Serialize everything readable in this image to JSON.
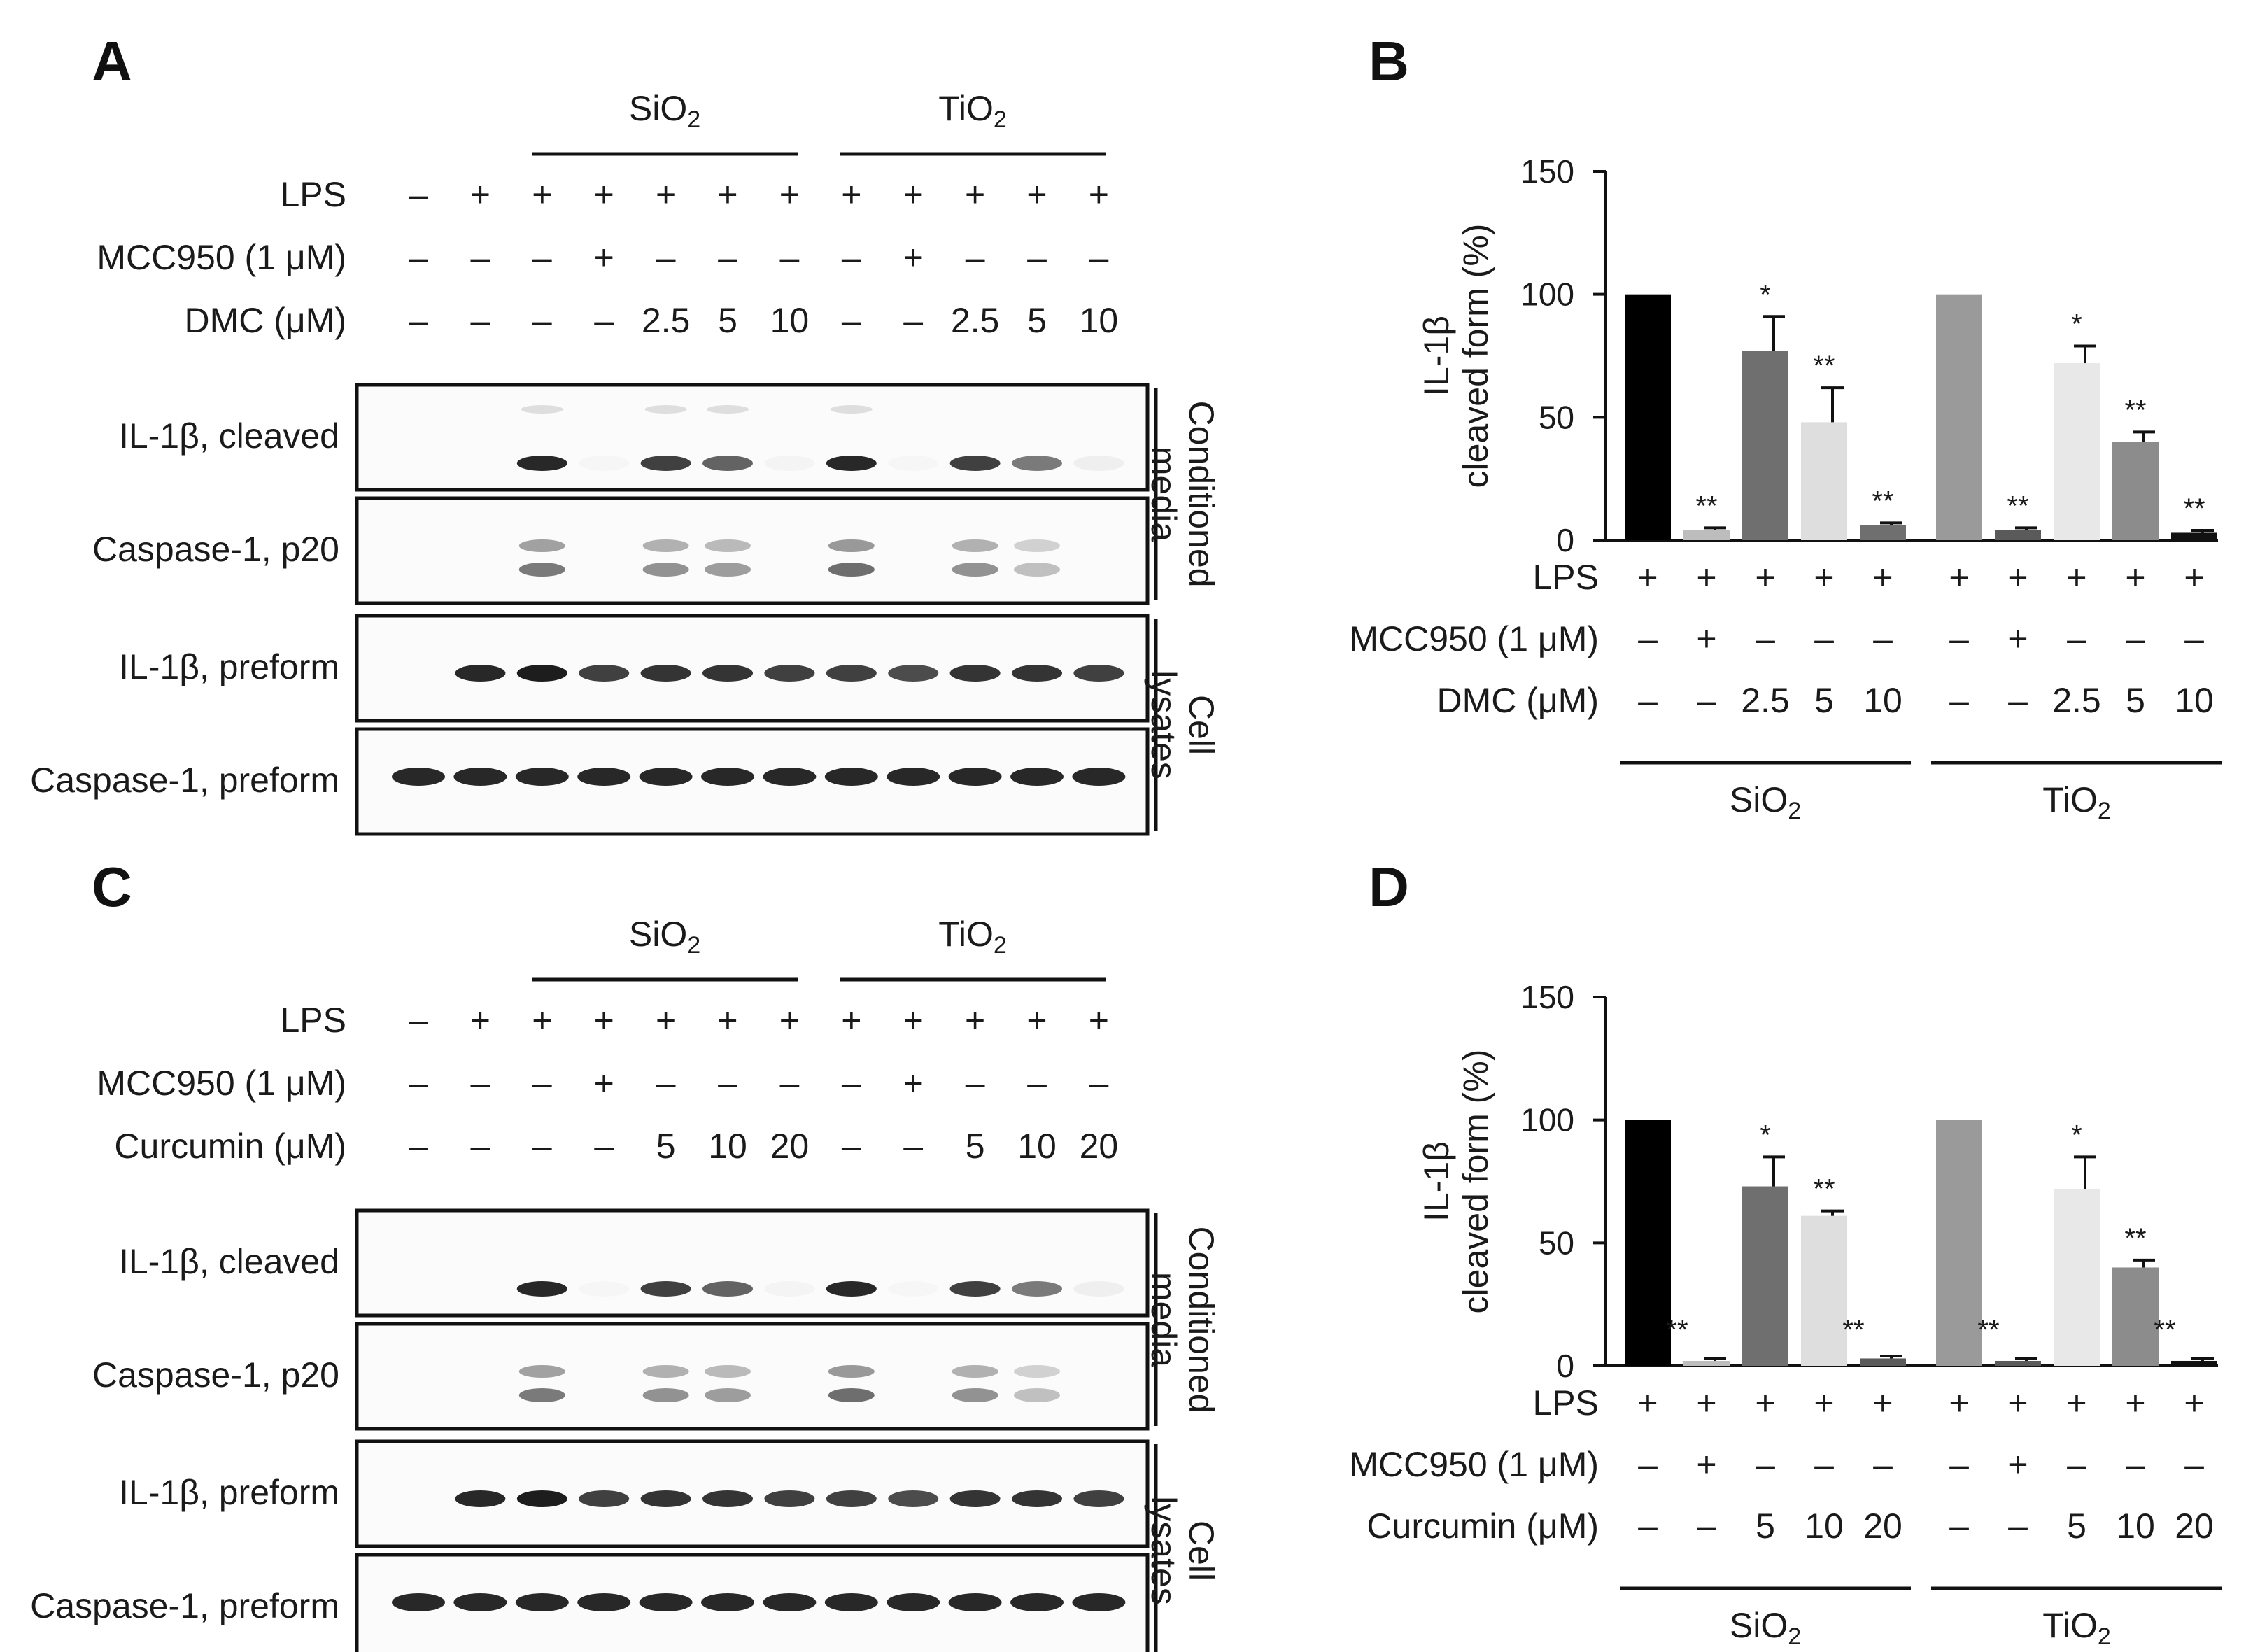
{
  "panels": {
    "A": {
      "label": "A",
      "groups": [
        "SiO2",
        "TiO2"
      ],
      "treatments": [
        {
          "label": "LPS",
          "marks": [
            "–",
            "+",
            "+",
            "+",
            "+",
            "+",
            "+",
            "+",
            "+",
            "+",
            "+",
            "+"
          ]
        },
        {
          "label": "MCC950 (1 μM)",
          "marks": [
            "–",
            "–",
            "–",
            "+",
            "–",
            "–",
            "–",
            "–",
            "+",
            "–",
            "–",
            "–"
          ]
        },
        {
          "label": "DMC (μM)",
          "marks": [
            "–",
            "–",
            "–",
            "–",
            "2.5",
            "5",
            "10",
            "–",
            "–",
            "2.5",
            "5",
            "10"
          ]
        }
      ],
      "blots": [
        "IL-1β, cleaved",
        "Caspase-1, p20",
        "IL-1β, preform",
        "Caspase-1, preform"
      ],
      "brackets": [
        "Conditioned media",
        "Cell lysates"
      ]
    },
    "C": {
      "label": "C",
      "groups": [
        "SiO2",
        "TiO2"
      ],
      "treatments": [
        {
          "label": "LPS",
          "marks": [
            "–",
            "+",
            "+",
            "+",
            "+",
            "+",
            "+",
            "+",
            "+",
            "+",
            "+",
            "+"
          ]
        },
        {
          "label": "MCC950 (1 μM)",
          "marks": [
            "–",
            "–",
            "–",
            "+",
            "–",
            "–",
            "–",
            "–",
            "+",
            "–",
            "–",
            "–"
          ]
        },
        {
          "label": "Curcumin (μM)",
          "marks": [
            "–",
            "–",
            "–",
            "–",
            "5",
            "10",
            "20",
            "–",
            "–",
            "5",
            "10",
            "20"
          ]
        }
      ],
      "blots": [
        "IL-1β, cleaved",
        "Caspase-1, p20",
        "IL-1β, preform",
        "Caspase-1, preform"
      ],
      "brackets": [
        "Conditioned media",
        "Cell lysates"
      ]
    }
  },
  "chart_data": [
    {
      "panel": "B",
      "type": "bar",
      "ylabel": "IL-1β cleaved form (%)",
      "ylim": [
        0,
        150
      ],
      "yticks": [
        0,
        50,
        100,
        150
      ],
      "groups": [
        "SiO2",
        "TiO2"
      ],
      "treatments": [
        {
          "label": "LPS",
          "marks": [
            "+",
            "+",
            "+",
            "+",
            "+",
            "+",
            "+",
            "+",
            "+",
            "+"
          ]
        },
        {
          "label": "MCC950 (1 μM)",
          "marks": [
            "–",
            "+",
            "–",
            "–",
            "–",
            "–",
            "+",
            "–",
            "–",
            "–"
          ]
        },
        {
          "label": "DMC (μM)",
          "marks": [
            "–",
            "–",
            "2.5",
            "5",
            "10",
            "–",
            "–",
            "2.5",
            "5",
            "10"
          ]
        }
      ],
      "values": [
        100,
        4,
        77,
        48,
        6,
        100,
        4,
        72,
        40,
        3
      ],
      "errors": [
        0,
        1,
        14,
        14,
        1,
        0,
        1,
        7,
        4,
        1
      ],
      "significance": [
        "",
        "**",
        "*",
        "**",
        "**",
        "",
        "**",
        "*",
        "**",
        "**"
      ],
      "colors": [
        "#000000",
        "#bdbdbd",
        "#6f6f6f",
        "#dedede",
        "#6f6f6f",
        "#9a9a9a",
        "#5a5a5a",
        "#e8e8e8",
        "#8c8c8c",
        "#111111"
      ]
    },
    {
      "panel": "D",
      "type": "bar",
      "ylabel": "IL-1β cleaved form (%)",
      "ylim": [
        0,
        150
      ],
      "yticks": [
        0,
        50,
        100,
        150
      ],
      "groups": [
        "SiO2",
        "TiO2"
      ],
      "treatments": [
        {
          "label": "LPS",
          "marks": [
            "+",
            "+",
            "+",
            "+",
            "+",
            "+",
            "+",
            "+",
            "+",
            "+"
          ]
        },
        {
          "label": "MCC950 (1 μM)",
          "marks": [
            "–",
            "+",
            "–",
            "–",
            "–",
            "–",
            "+",
            "–",
            "–",
            "–"
          ]
        },
        {
          "label": "Curcumin (μM)",
          "marks": [
            "–",
            "–",
            "5",
            "10",
            "20",
            "–",
            "–",
            "5",
            "10",
            "20"
          ]
        }
      ],
      "values": [
        100,
        2,
        73,
        61,
        3,
        100,
        2,
        72,
        40,
        2
      ],
      "errors": [
        0,
        1,
        12,
        2,
        1,
        0,
        1,
        13,
        3,
        1
      ],
      "significance": [
        "",
        "**",
        "*",
        "**",
        "**",
        "",
        "**",
        "*",
        "**",
        "**"
      ],
      "colors": [
        "#000000",
        "#bdbdbd",
        "#6f6f6f",
        "#dedede",
        "#5a5a5a",
        "#9a9a9a",
        "#5a5a5a",
        "#e8e8e8",
        "#8c8c8c",
        "#111111"
      ]
    }
  ]
}
